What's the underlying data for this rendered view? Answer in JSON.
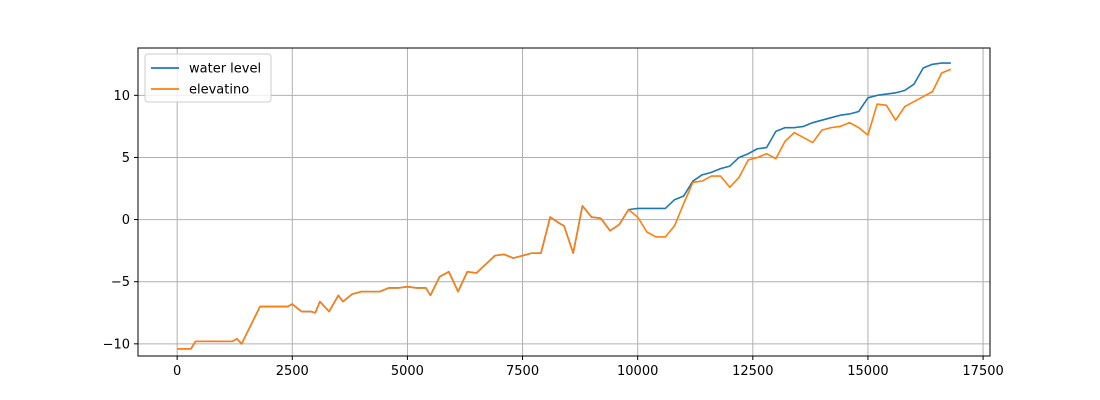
{
  "chart_data": {
    "type": "line",
    "title": "",
    "xlabel": "",
    "ylabel": "",
    "xlim": [
      -850,
      17650
    ],
    "ylim": [
      -10.98,
      13.81
    ],
    "xticks": [
      0,
      2500,
      5000,
      7500,
      10000,
      12500,
      15000,
      17500
    ],
    "xtick_labels": [
      "0",
      "2500",
      "5000",
      "7500",
      "10000",
      "12500",
      "15000",
      "17500"
    ],
    "yticks": [
      -10,
      -5,
      0,
      5,
      10
    ],
    "ytick_labels": [
      "−10",
      "−5",
      "0",
      "5",
      "10"
    ],
    "grid": true,
    "legend_position": "top-left",
    "series": [
      {
        "name": "water level",
        "color": "#1f77b4",
        "x": [
          0,
          300,
          400,
          600,
          1000,
          1200,
          1300,
          1400,
          1600,
          1800,
          2000,
          2200,
          2400,
          2500,
          2700,
          2900,
          3000,
          3100,
          3300,
          3500,
          3600,
          3800,
          4000,
          4200,
          4400,
          4600,
          4800,
          5000,
          5200,
          5400,
          5500,
          5700,
          5900,
          6100,
          6300,
          6500,
          6700,
          6900,
          7100,
          7300,
          7500,
          7700,
          7900,
          8100,
          8300,
          8400,
          8600,
          8800,
          9000,
          9200,
          9400,
          9600,
          9800,
          10000,
          10200,
          10400,
          10600,
          10800,
          11000,
          11200,
          11400,
          11600,
          11800,
          12000,
          12200,
          12400,
          12600,
          12800,
          13000,
          13200,
          13400,
          13600,
          13800,
          14000,
          14200,
          14400,
          14600,
          14800,
          15000,
          15200,
          15400,
          15600,
          15800,
          16000,
          16200,
          16400,
          16600,
          16800
        ],
        "y": [
          -10.4,
          -10.4,
          -9.8,
          -9.8,
          -9.8,
          -9.8,
          -9.6,
          -10.0,
          -8.5,
          -7.0,
          -7.0,
          -7.0,
          -7.0,
          -6.8,
          -7.4,
          -7.4,
          -7.5,
          -6.6,
          -7.4,
          -6.1,
          -6.6,
          -6.0,
          -5.8,
          -5.8,
          -5.8,
          -5.5,
          -5.5,
          -5.4,
          -5.5,
          -5.5,
          -6.1,
          -4.6,
          -4.2,
          -5.8,
          -4.2,
          -4.3,
          -3.6,
          -2.9,
          -2.8,
          -3.1,
          -2.9,
          -2.7,
          -2.7,
          0.2,
          -0.3,
          -0.5,
          -2.7,
          1.1,
          0.2,
          0.1,
          -0.9,
          -0.4,
          0.8,
          0.9,
          0.9,
          0.9,
          0.9,
          1.6,
          1.9,
          3.1,
          3.6,
          3.8,
          4.1,
          4.3,
          5.0,
          5.3,
          5.7,
          5.8,
          7.1,
          7.4,
          7.4,
          7.5,
          7.8,
          8.0,
          8.2,
          8.4,
          8.5,
          8.7,
          9.8,
          10.0,
          10.1,
          10.2,
          10.4,
          10.9,
          12.2,
          12.5,
          12.6,
          12.6
        ]
      },
      {
        "name": "elevatino",
        "color": "#ff7f0e",
        "x": [
          0,
          300,
          400,
          600,
          1000,
          1200,
          1300,
          1400,
          1600,
          1800,
          2000,
          2200,
          2400,
          2500,
          2700,
          2900,
          3000,
          3100,
          3300,
          3500,
          3600,
          3800,
          4000,
          4200,
          4400,
          4600,
          4800,
          5000,
          5200,
          5400,
          5500,
          5700,
          5900,
          6100,
          6300,
          6500,
          6700,
          6900,
          7100,
          7300,
          7500,
          7700,
          7900,
          8100,
          8300,
          8400,
          8600,
          8800,
          9000,
          9200,
          9400,
          9600,
          9800,
          10000,
          10200,
          10400,
          10600,
          10800,
          11000,
          11200,
          11400,
          11600,
          11800,
          12000,
          12200,
          12400,
          12600,
          12800,
          13000,
          13200,
          13400,
          13600,
          13800,
          14000,
          14200,
          14400,
          14600,
          14800,
          15000,
          15200,
          15400,
          15600,
          15800,
          16000,
          16200,
          16400,
          16600,
          16800
        ],
        "y": [
          -10.4,
          -10.4,
          -9.8,
          -9.8,
          -9.8,
          -9.8,
          -9.6,
          -10.0,
          -8.5,
          -7.0,
          -7.0,
          -7.0,
          -7.0,
          -6.8,
          -7.4,
          -7.4,
          -7.5,
          -6.6,
          -7.4,
          -6.1,
          -6.6,
          -6.0,
          -5.8,
          -5.8,
          -5.8,
          -5.5,
          -5.5,
          -5.4,
          -5.5,
          -5.5,
          -6.1,
          -4.6,
          -4.2,
          -5.8,
          -4.2,
          -4.3,
          -3.6,
          -2.9,
          -2.8,
          -3.1,
          -2.9,
          -2.7,
          -2.7,
          0.2,
          -0.3,
          -0.5,
          -2.7,
          1.1,
          0.2,
          0.1,
          -0.9,
          -0.4,
          0.8,
          0.2,
          -1.0,
          -1.4,
          -1.4,
          -0.5,
          1.3,
          3.0,
          3.1,
          3.5,
          3.5,
          2.6,
          3.4,
          4.8,
          5.0,
          5.3,
          4.9,
          6.3,
          7.0,
          6.6,
          6.2,
          7.2,
          7.4,
          7.5,
          7.8,
          7.4,
          6.8,
          9.3,
          9.2,
          8.0,
          9.1,
          9.5,
          9.9,
          10.3,
          11.8,
          12.1
        ]
      }
    ]
  }
}
